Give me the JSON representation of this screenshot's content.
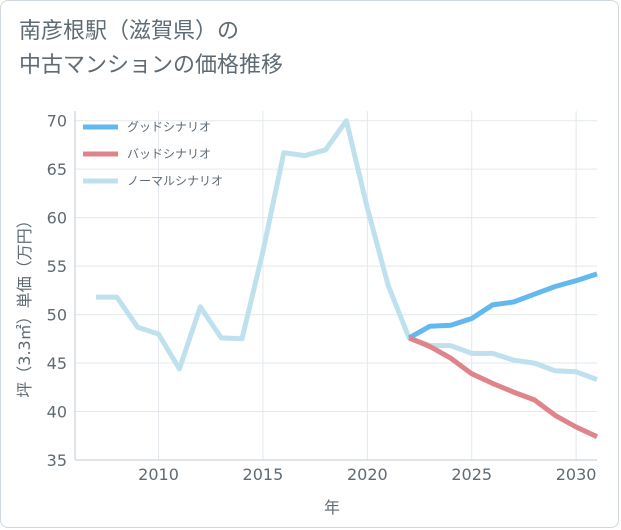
{
  "title_line1": "南彦根駅（滋賀県）の",
  "title_line2": "中古マンションの価格推移",
  "chart_data": {
    "type": "line",
    "xlabel": "年",
    "ylabel": "坪（3.3㎡）単価（万円）",
    "xlim": [
      2006,
      2031
    ],
    "ylim": [
      35,
      71
    ],
    "xticks": [
      2010,
      2015,
      2020,
      2025,
      2030
    ],
    "yticks": [
      35,
      40,
      45,
      50,
      55,
      60,
      65,
      70
    ],
    "grid": true,
    "legend_position": "top-left",
    "series": [
      {
        "name": "グッドシナリオ",
        "color": "#63b8ee",
        "x": [
          2022,
          2023,
          2024,
          2025,
          2026,
          2027,
          2028,
          2029,
          2030,
          2031
        ],
        "values": [
          47.6,
          48.8,
          48.9,
          49.6,
          51.0,
          51.3,
          52.1,
          52.9,
          53.5,
          54.2
        ]
      },
      {
        "name": "バッドシナリオ",
        "color": "#e0848c",
        "x": [
          2022,
          2023,
          2024,
          2025,
          2026,
          2027,
          2028,
          2029,
          2030,
          2031
        ],
        "values": [
          47.6,
          46.7,
          45.5,
          43.9,
          42.9,
          42.0,
          41.2,
          39.6,
          38.4,
          37.4
        ]
      },
      {
        "name": "ノーマルシナリオ",
        "color": "#bfe1ee",
        "x": [
          2007,
          2008,
          2009,
          2010,
          2011,
          2012,
          2013,
          2014,
          2015,
          2016,
          2017,
          2018,
          2019,
          2020,
          2021,
          2022,
          2023,
          2024,
          2025,
          2026,
          2027,
          2028,
          2029,
          2030,
          2031
        ],
        "values": [
          51.8,
          51.8,
          48.7,
          48.0,
          44.4,
          50.8,
          47.6,
          47.5,
          56.5,
          66.7,
          66.4,
          67.0,
          70.0,
          61.0,
          53.0,
          47.6,
          46.8,
          46.8,
          46.0,
          46.0,
          45.3,
          45.0,
          44.2,
          44.1,
          43.3
        ]
      }
    ]
  }
}
